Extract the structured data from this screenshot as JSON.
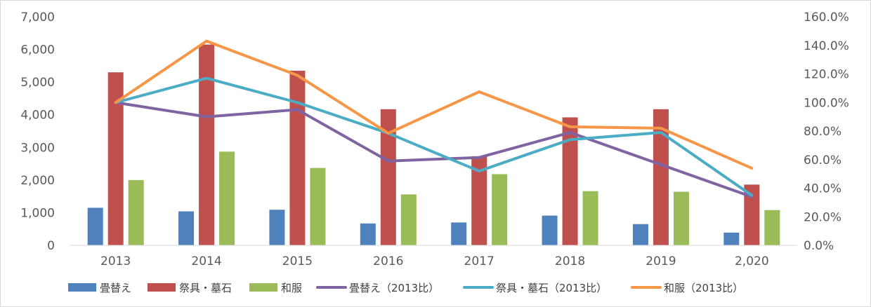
{
  "chart_data": {
    "type": "bar",
    "categories": [
      "2013",
      "2014",
      "2015",
      "2016",
      "2017",
      "2018",
      "2019",
      "2,020"
    ],
    "bar_series": [
      {
        "name": "畳替え",
        "color": "#4f81bd",
        "values": [
          1150,
          1040,
          1090,
          670,
          700,
          910,
          650,
          390
        ]
      },
      {
        "name": "祭具・墓石",
        "color": "#c0504d",
        "values": [
          5300,
          6150,
          5350,
          4170,
          2730,
          3920,
          4170,
          1860
        ]
      },
      {
        "name": "和服",
        "color": "#9bbb59",
        "values": [
          2000,
          2870,
          2370,
          1560,
          2180,
          1660,
          1640,
          1080
        ]
      }
    ],
    "line_series": [
      {
        "name": "畳替え（2013比）",
        "color": "#8064a2",
        "values": [
          1.0,
          0.9,
          0.95,
          0.59,
          0.615,
          0.79,
          0.565,
          0.34
        ]
      },
      {
        "name": "祭具・墓石（2013比）",
        "color": "#4bacc6",
        "values": [
          1.0,
          1.17,
          1.0,
          0.785,
          0.52,
          0.74,
          0.79,
          0.35
        ]
      },
      {
        "name": "和服（2013比）",
        "color": "#f79646",
        "values": [
          1.0,
          1.43,
          1.19,
          0.785,
          1.075,
          0.83,
          0.82,
          0.54
        ]
      }
    ],
    "y_left": {
      "min": 0,
      "max": 7000,
      "ticks": [
        "0",
        "1,000",
        "2,000",
        "3,000",
        "4,000",
        "5,000",
        "6,000",
        "7,000"
      ]
    },
    "y_right": {
      "min": 0,
      "max": 1.6,
      "ticks": [
        "0.0%",
        "20.0%",
        "40.0%",
        "60.0%",
        "80.0%",
        "100.0%",
        "120.0%",
        "140.0%",
        "160.0%"
      ]
    },
    "legend_position": "bottom",
    "grid": false
  }
}
